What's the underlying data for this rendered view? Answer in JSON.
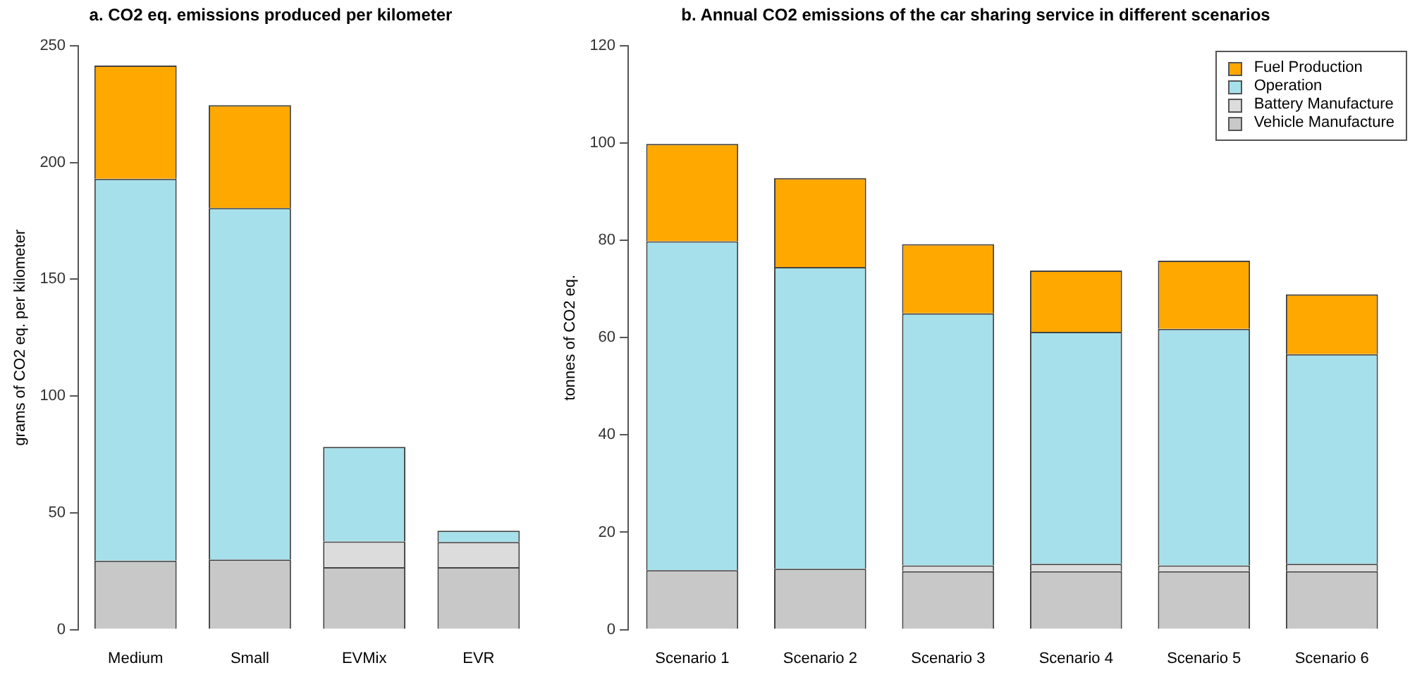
{
  "chart_data": [
    {
      "type": "bar",
      "title": "a. CO2 eq. emissions produced per kilometer",
      "ylabel": "grams of CO2 eq. per kilometer",
      "categories": [
        "Medium",
        "Small",
        "EVMix",
        "EVR"
      ],
      "stacked": true,
      "ylim": [
        0,
        250
      ],
      "yticks": [
        0,
        50,
        100,
        150,
        200,
        250
      ],
      "series": [
        {
          "color": "#c8c8c8",
          "values": [
            29.5,
            30,
            26.7,
            26.7
          ]
        },
        {
          "color": "#dcdcdc",
          "values": [
            0,
            0,
            11,
            10.8
          ]
        },
        {
          "color": "#a6e0eb",
          "values": [
            163.5,
            150.5,
            40.5,
            4.8
          ]
        },
        {
          "color": "#ffa800",
          "values": [
            48.5,
            44,
            0,
            0
          ]
        }
      ]
    },
    {
      "type": "bar",
      "title": "b. Annual CO2 emissions of the car sharing service in different scenarios",
      "ylabel": "tonnes of CO2 eq.",
      "categories": [
        "Scenario 1",
        "Scenario 2",
        "Scenario 3",
        "Scenario 4",
        "Scenario 5",
        "Scenario 6"
      ],
      "stacked": true,
      "ylim": [
        0,
        120
      ],
      "yticks": [
        0,
        20,
        40,
        60,
        80,
        100,
        120
      ],
      "legend": "top right",
      "series": [
        {
          "name": "Vehicle Manufacture",
          "color": "#c8c8c8",
          "values": [
            12.2,
            12.5,
            12,
            12,
            12,
            12
          ]
        },
        {
          "name": "Battery Manufacture",
          "color": "#dcdcdc",
          "values": [
            0,
            0,
            1.2,
            1.5,
            1.2,
            1.5
          ]
        },
        {
          "name": "Operation",
          "color": "#a6e0eb",
          "values": [
            67.6,
            62,
            51.8,
            47.7,
            48.6,
            43.1
          ]
        },
        {
          "name": "Fuel Production",
          "color": "#ffa800",
          "values": [
            20,
            18.3,
            14.2,
            12.6,
            14,
            12.3
          ]
        }
      ]
    }
  ]
}
